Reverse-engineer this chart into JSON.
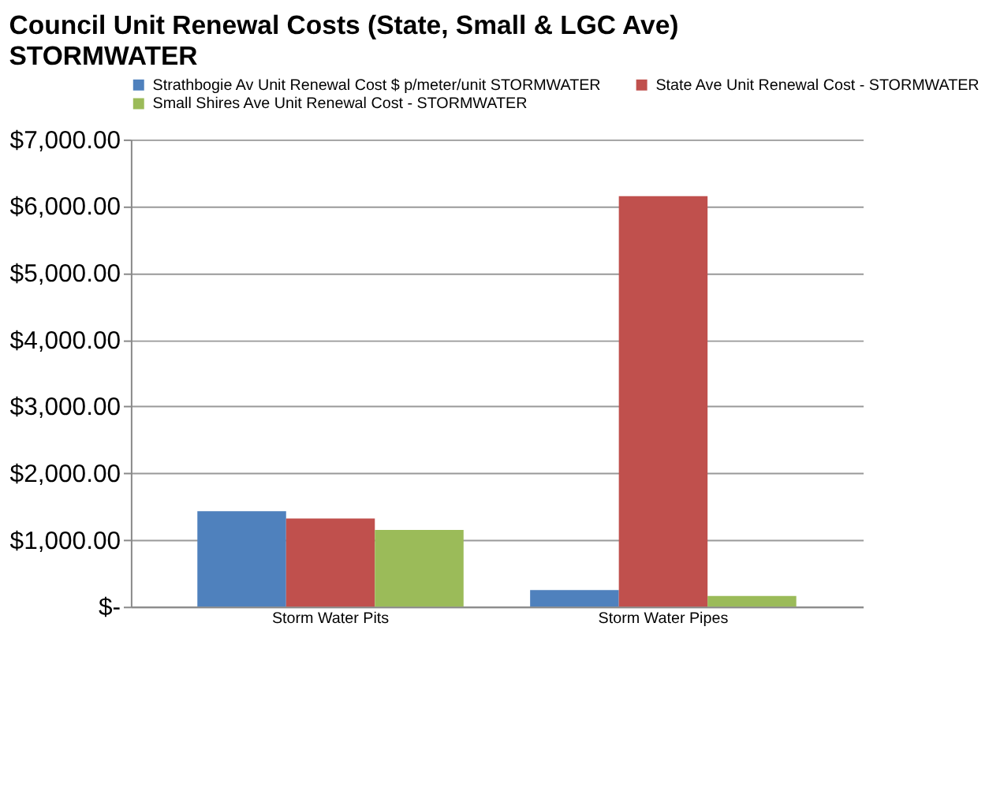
{
  "chart_data": {
    "type": "bar",
    "title": "Council Unit Renewal Costs (State, Small & LGC Ave)",
    "subtitle": "STORMWATER",
    "categories": [
      "Storm Water Pits",
      "Storm Water Pipes"
    ],
    "series": [
      {
        "name": "Strathbogie Av Unit Renewal Cost $ p/meter/unit STORMWATER",
        "color": "#4f81bd",
        "values": [
          1430,
          250
        ]
      },
      {
        "name": "State Ave Unit Renewal Cost - STORMWATER",
        "color": "#c0504d",
        "values": [
          1320,
          6150
        ]
      },
      {
        "name": "Small Shires Ave Unit Renewal Cost - STORMWATER",
        "color": "#9bbb59",
        "values": [
          1150,
          160
        ]
      }
    ],
    "ylim": [
      0,
      7000
    ],
    "yticks": [
      {
        "value": 0,
        "label": "$-"
      },
      {
        "value": 1000,
        "label": "$1,000.00"
      },
      {
        "value": 2000,
        "label": "$2,000.00"
      },
      {
        "value": 3000,
        "label": "$3,000.00"
      },
      {
        "value": 4000,
        "label": "$4,000.00"
      },
      {
        "value": 5000,
        "label": "$5,000.00"
      },
      {
        "value": 6000,
        "label": "$6,000.00"
      },
      {
        "value": 7000,
        "label": "$7,000.00"
      }
    ],
    "grid": "y",
    "legend": "top"
  }
}
